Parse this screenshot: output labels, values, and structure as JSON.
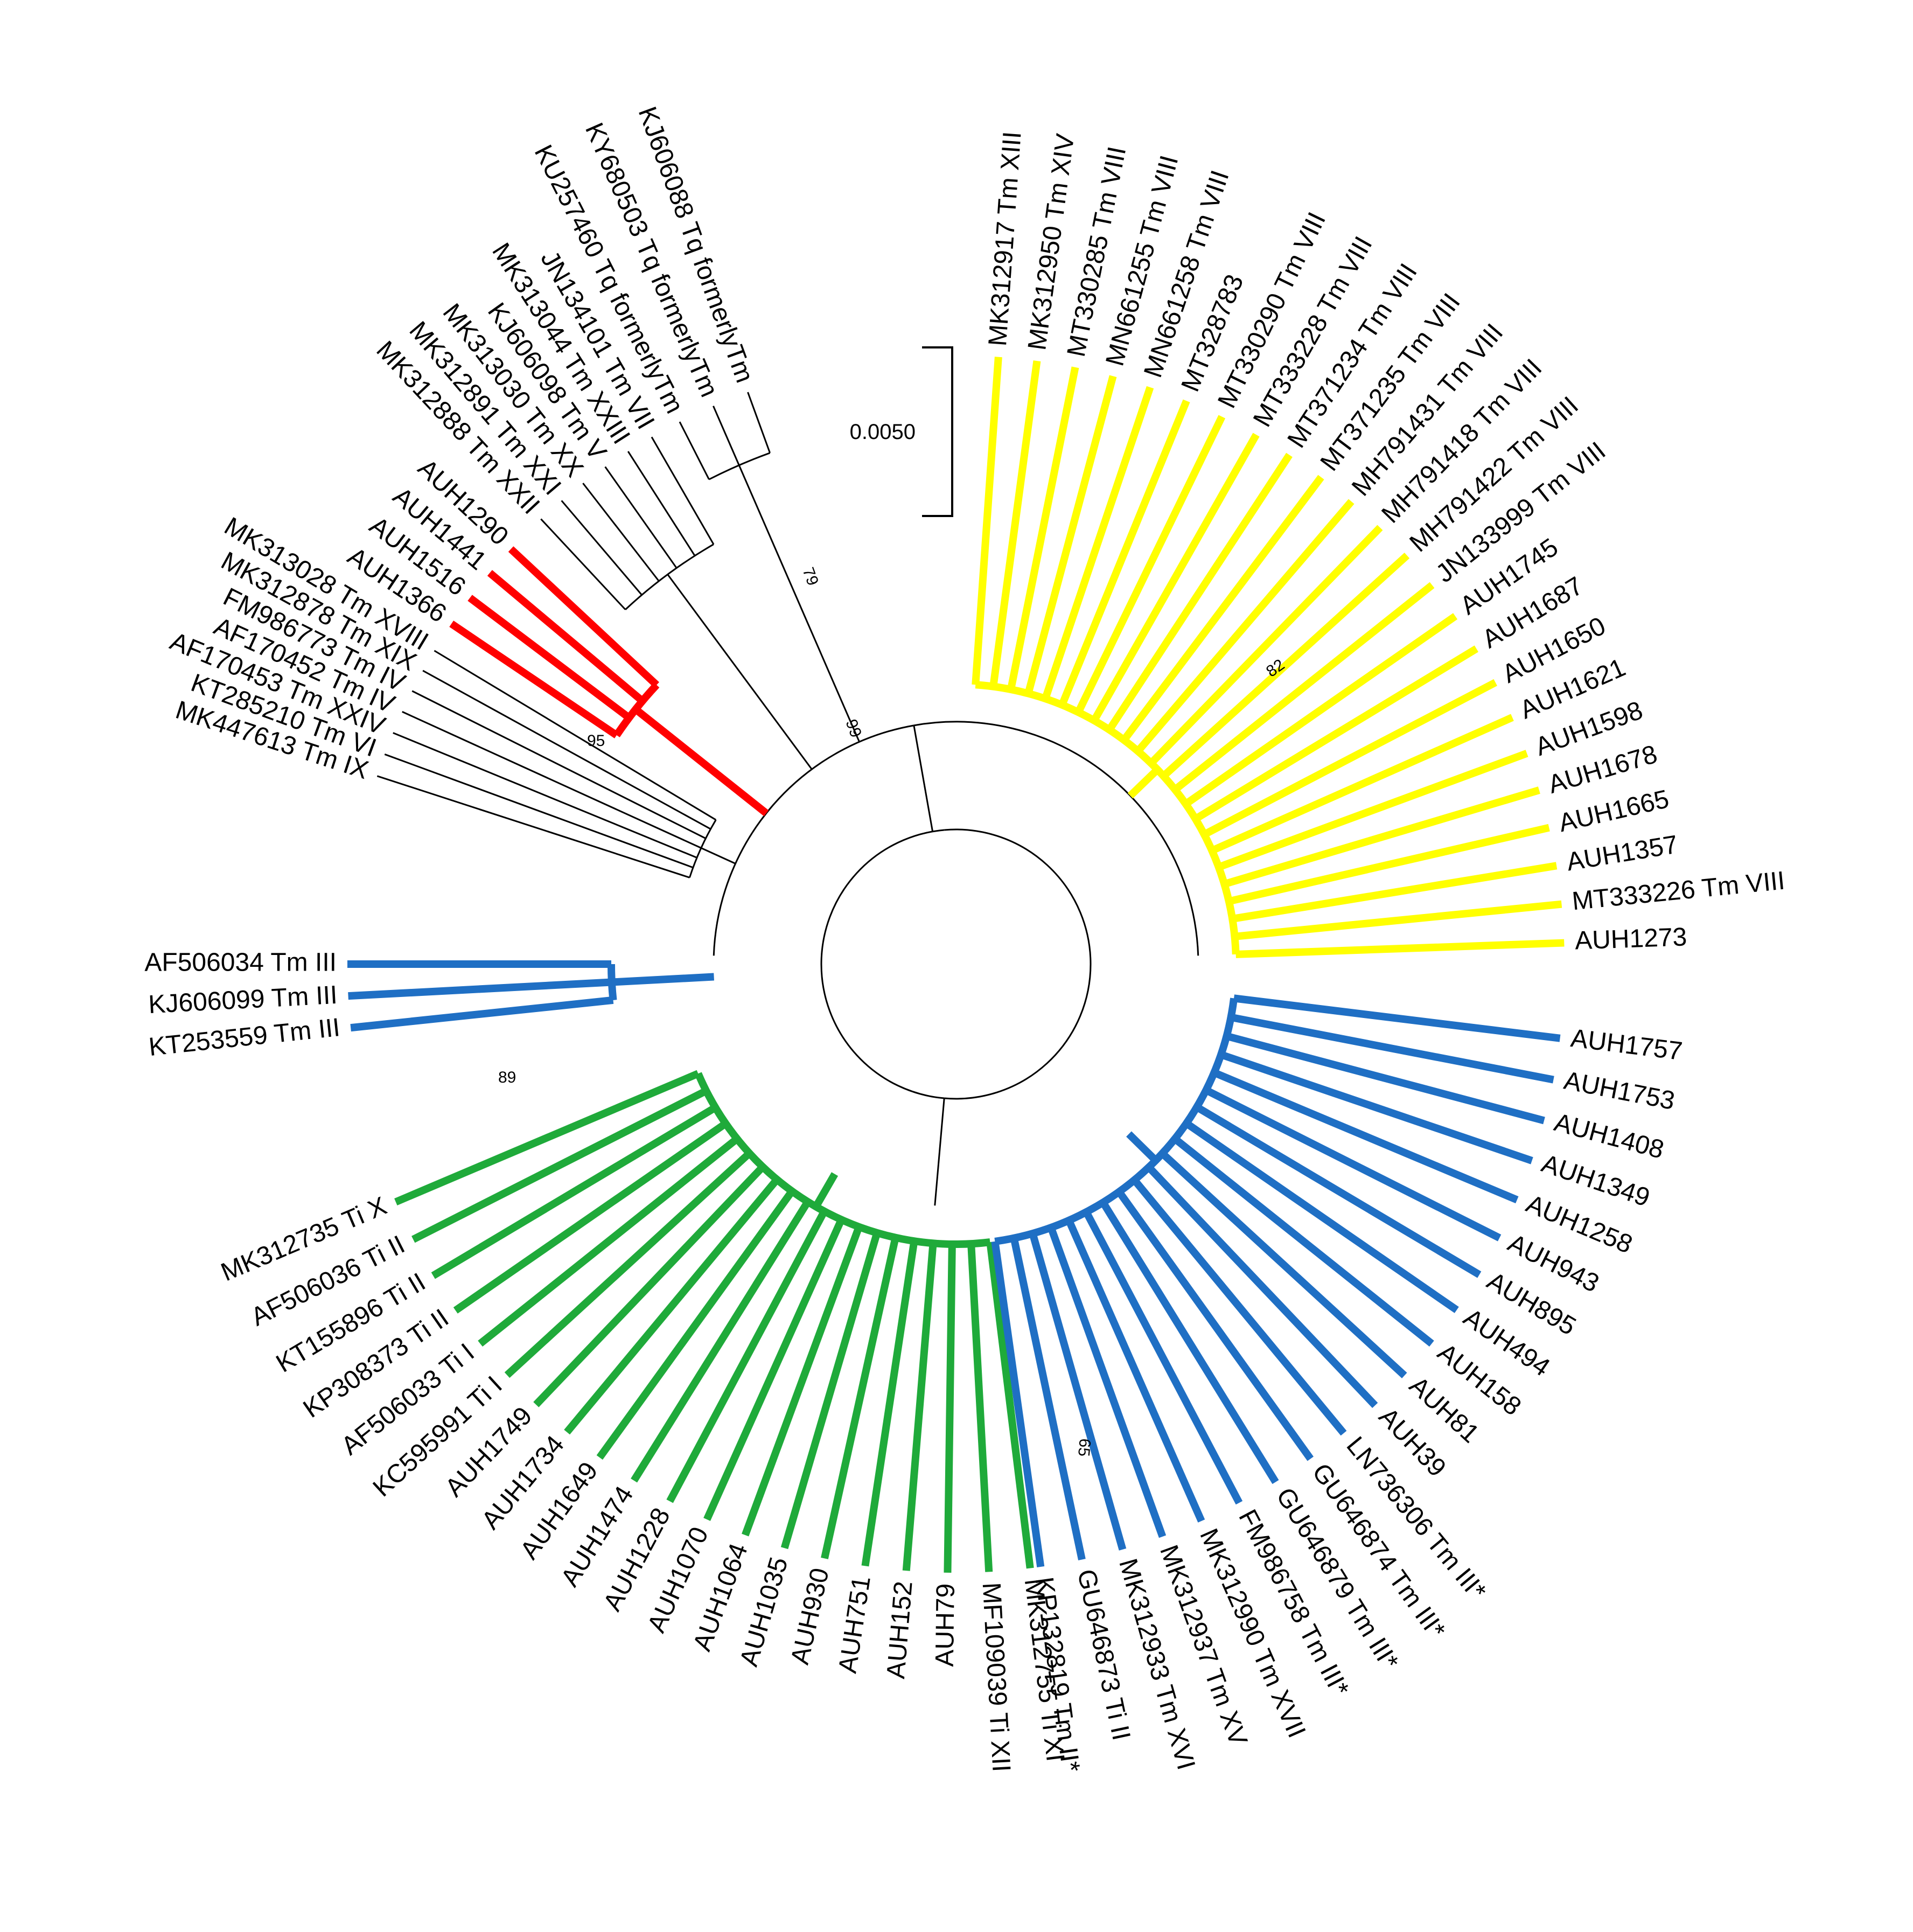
{
  "scale_bar": {
    "label": "0.0050"
  },
  "bootstrap": [
    "79",
    "99",
    "95",
    "82",
    "89",
    "65"
  ],
  "clades": [
    {
      "id": "black-tq",
      "color": "#000000",
      "thick": false,
      "leaves": [
        "KU257460 Tq formerlyTm",
        "KY680503 Tq formerlyTm",
        "KJ606088 Tq formerlyTm"
      ]
    },
    {
      "id": "black",
      "color": "#000000",
      "thick": false,
      "leaves": [
        "MK312888 Tm XXII",
        "MK312891 Tm XXI",
        "MK313030 Tm XX",
        "KJ606098 Tm V",
        "MK313044 Tm XXIII",
        "JN134101 Tm VII"
      ]
    },
    {
      "id": "red",
      "color": "#ff0000",
      "thick": true,
      "leaves": [
        "AUH1366",
        "AUH1516",
        "AUH1441",
        "AUH1290"
      ]
    },
    {
      "id": "black2",
      "color": "#000000",
      "thick": false,
      "leaves": [
        "MK447613 Tm IX",
        "KT285210 Tm VI",
        "AF170453 Tm XXIV",
        "AF170452 Tm IV",
        "FM986773 Tm IV",
        "MK312878 Tm XIX",
        "MK313028 Tm XVIII"
      ]
    },
    {
      "id": "blue-left",
      "color": "#1f6fc4",
      "thick": true,
      "leaves": [
        "KT253559 Tm III",
        "KJ606099 Tm III",
        "AF506034 Tm III"
      ]
    },
    {
      "id": "green",
      "color": "#1faa3a",
      "thick": true,
      "leaves": [
        "MK312735 Ti X",
        "AF506036 Ti II",
        "KT155896 Ti II",
        "KP308373 Ti II",
        "AF506033 Ti I",
        "KC595991 Ti I",
        "AUH1749",
        "AUH1734",
        "AUH1649",
        "AUH1474",
        "AUH1228",
        "AUH1070",
        "AUH1064",
        "AUH1035",
        "AUH930",
        "AUH751",
        "AUH152",
        "AUH79",
        "MF109039 Ti XII",
        "MK312755 Ti XI"
      ]
    },
    {
      "id": "blue-right",
      "color": "#1f6fc4",
      "thick": true,
      "leaves": [
        "KP132819 Tm II*",
        "GU646873 Ti II",
        "MK312933 Tm XVI",
        "MK312937 Tm XV",
        "MK312990 Tm XVII",
        "FM986758 Tm III*",
        "GU646879 Tm III*",
        "GU646874 Tm III*",
        "LN736306 Tm III*",
        "AUH39",
        "AUH81",
        "AUH158",
        "AUH494",
        "AUH895",
        "AUH943",
        "AUH1258",
        "AUH1349",
        "AUH1408",
        "AUH1753",
        "AUH1757"
      ]
    },
    {
      "id": "yellow",
      "color": "#ffff00",
      "thick": true,
      "leaves": [
        "AUH1273",
        "MT333226 Tm VIII",
        "AUH1357",
        "AUH1665",
        "AUH1678",
        "AUH1598",
        "AUH1621",
        "AUH1650",
        "AUH1687",
        "AUH1745",
        "JN133999 Tm VIII",
        "MH791422 Tm VIII",
        "MH791418 Tm VIII",
        "MH791431 Tm VIII",
        "MT371235 Tm VIII",
        "MT371234 Tm VIII",
        "MT333228 Tm VIII",
        "MT330290 Tm VIII",
        "MT328783",
        "MN661258 Tm VIII",
        "MN661255 Tm VIII",
        "MT330285 Tm VIII",
        "MK312950 Tm XIV",
        "MK312917 Tm XIII"
      ]
    }
  ]
}
